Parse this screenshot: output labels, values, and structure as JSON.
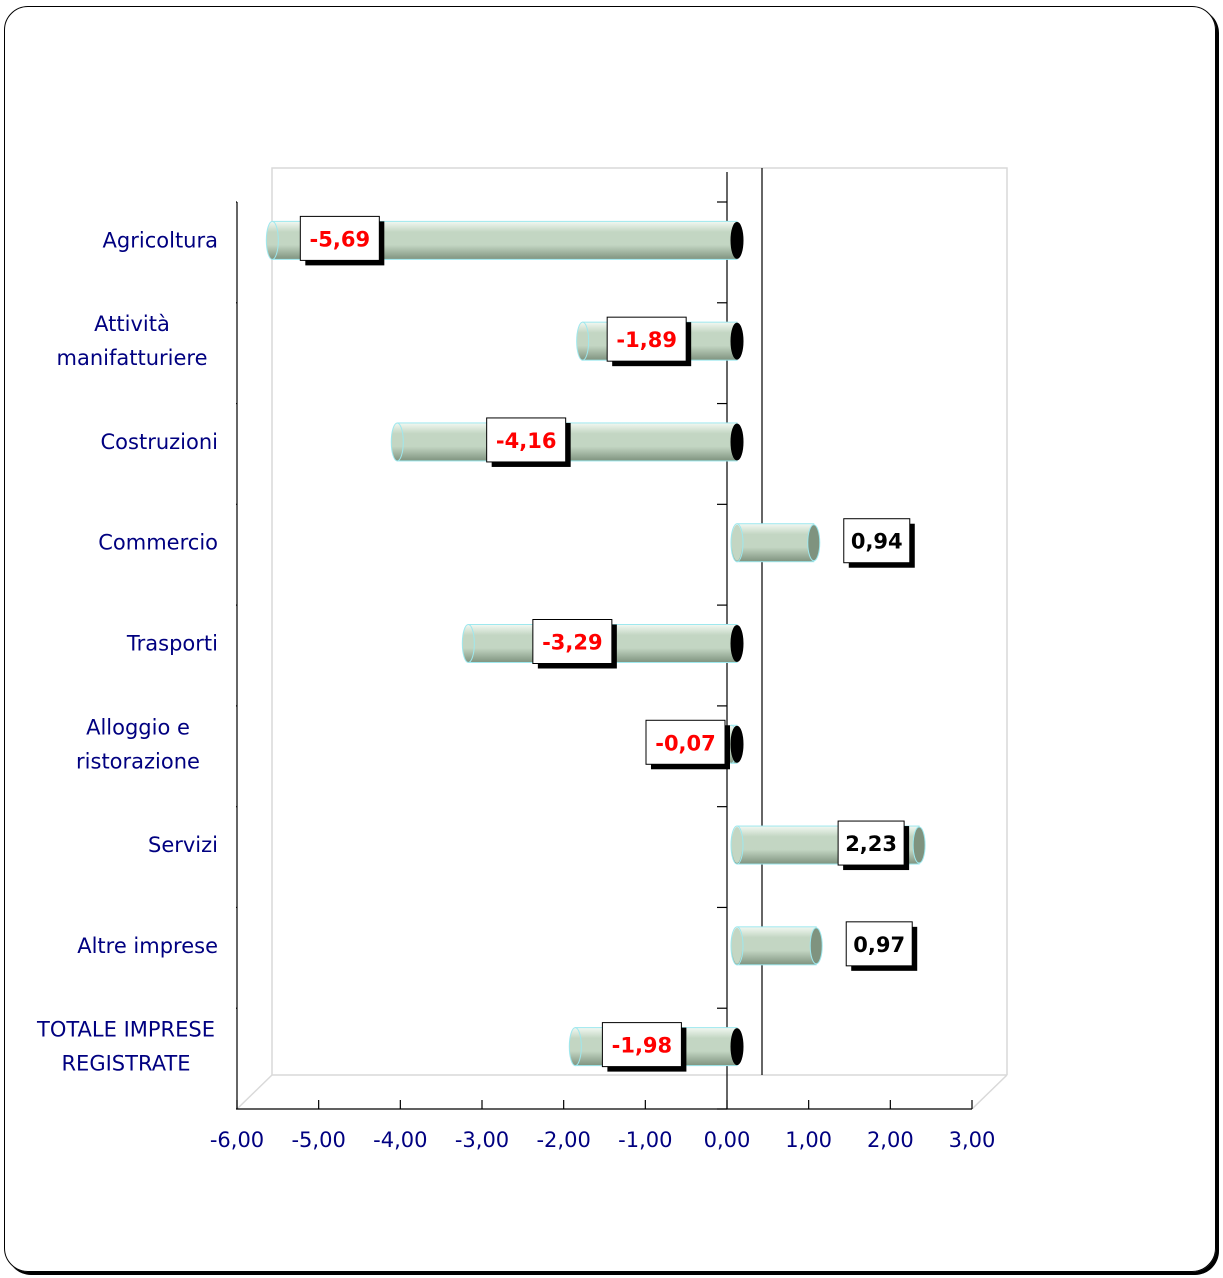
{
  "chart_data": {
    "type": "bar",
    "orientation": "horizontal",
    "categories": [
      [
        "Agricoltura"
      ],
      [
        "Attività",
        "manifatturiere"
      ],
      [
        "Costruzioni"
      ],
      [
        "Commercio"
      ],
      [
        "Trasporti"
      ],
      [
        "Alloggio e",
        "ristorazione"
      ],
      [
        "Servizi"
      ],
      [
        "Altre imprese"
      ],
      [
        "TOTALE IMPRESE",
        "REGISTRATE"
      ]
    ],
    "values": [
      -5.69,
      -1.89,
      -4.16,
      0.94,
      -3.29,
      -0.07,
      2.23,
      0.97,
      -1.98
    ],
    "data_labels": [
      "-5,69",
      "-1,89",
      "-4,16",
      "0,94",
      "-3,29",
      "-0,07",
      "2,23",
      "0,97",
      "-1,98"
    ],
    "xlim": [
      -6,
      3
    ],
    "xticks": [
      "-6,00",
      "-5,00",
      "-4,00",
      "-3,00",
      "-2,00",
      "-1,00",
      "0,00",
      "1,00",
      "2,00",
      "3,00"
    ],
    "title": "",
    "xlabel": "",
    "ylabel": "",
    "grid": false,
    "colors": {
      "bar_fill": "#c3d6c3",
      "bar_highlight": "#f2f8f2",
      "bar_shadow": "#7f937f",
      "bar_edge": "#9ee8ee",
      "negative_label": "#ff0000",
      "positive_label": "#000000",
      "axis_text": "#000080"
    }
  }
}
